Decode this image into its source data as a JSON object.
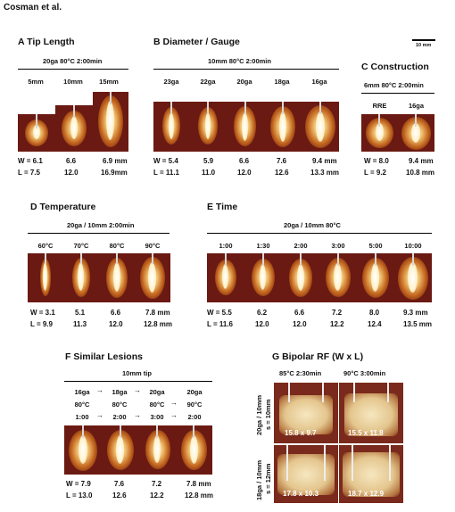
{
  "author": "Cosman et al.",
  "scale_bar": "10 mm",
  "panelA": {
    "title": "A  Tip Length",
    "condition": "20ga  80°C  2:00min",
    "labels": [
      "5mm",
      "10mm",
      "15mm"
    ],
    "w_values": [
      "W = 6.1",
      "6.6",
      "6.9  mm"
    ],
    "l_values": [
      "L = 7.5",
      "12.0",
      "16.9mm"
    ]
  },
  "panelB": {
    "title": "B  Diameter / Gauge",
    "condition": "10mm  80°C  2:00min",
    "labels": [
      "23ga",
      "22ga",
      "20ga",
      "18ga",
      "16ga"
    ],
    "w_values": [
      "W = 5.4",
      "5.9",
      "6.6",
      "7.6",
      "9.4  mm"
    ],
    "l_values": [
      "L = 11.1",
      "11.0",
      "12.0",
      "12.6",
      "13.3  mm"
    ]
  },
  "panelC": {
    "title": "C  Construction",
    "condition": "6mm  80°C  2:00min",
    "labels": [
      "RRE",
      "16ga"
    ],
    "w_values": [
      "W = 8.0",
      "9.4  mm"
    ],
    "l_values": [
      "L = 9.2",
      "10.8 mm"
    ]
  },
  "panelD": {
    "title": "D  Temperature",
    "condition": "20ga / 10mm  2:00min",
    "labels": [
      "60°C",
      "70°C",
      "80°C",
      "90°C"
    ],
    "w_values": [
      "W = 3.1",
      "5.1",
      "6.6",
      "7.8  mm"
    ],
    "l_values": [
      "L = 9.9",
      "11.3",
      "12.0",
      "12.8 mm"
    ]
  },
  "panelE": {
    "title": "E  Time",
    "condition": "20ga / 10mm  80°C",
    "labels": [
      "1:00",
      "1:30",
      "2:00",
      "3:00",
      "5:00",
      "10:00"
    ],
    "w_values": [
      "W = 5.5",
      "6.2",
      "6.6",
      "7.2",
      "8.0",
      "9.3  mm"
    ],
    "l_values": [
      "L = 11.6",
      "12.0",
      "12.0",
      "12.2",
      "12.4",
      "13.5 mm"
    ]
  },
  "panelF": {
    "title": "F  Similar Lesions",
    "condition": "10mm tip",
    "row1": [
      "16ga",
      "18ga",
      "20ga",
      "20ga"
    ],
    "row2": [
      "80°C",
      "80°C",
      "80°C",
      "90°C"
    ],
    "row3": [
      "1:00",
      "2:00",
      "3:00",
      "2:00"
    ],
    "w_values": [
      "W = 7.9",
      "7.6",
      "7.2",
      "7.8  mm"
    ],
    "l_values": [
      "L = 13.0",
      "12.6",
      "12.2",
      "12.8 mm"
    ]
  },
  "panelG": {
    "title": "G  Bipolar RF (W x L)",
    "col_labels": [
      "85°C  2:30min",
      "90°C  3:00min"
    ],
    "row_labels": [
      [
        "20ga / 10mm",
        "s = 10mm"
      ],
      [
        "18ga / 10mm",
        "s = 12mm"
      ]
    ],
    "values": [
      "15.8 x 9.7",
      "15.5 x 11.8",
      "17.8 x 10.3",
      "18.7 x 12.9"
    ]
  }
}
